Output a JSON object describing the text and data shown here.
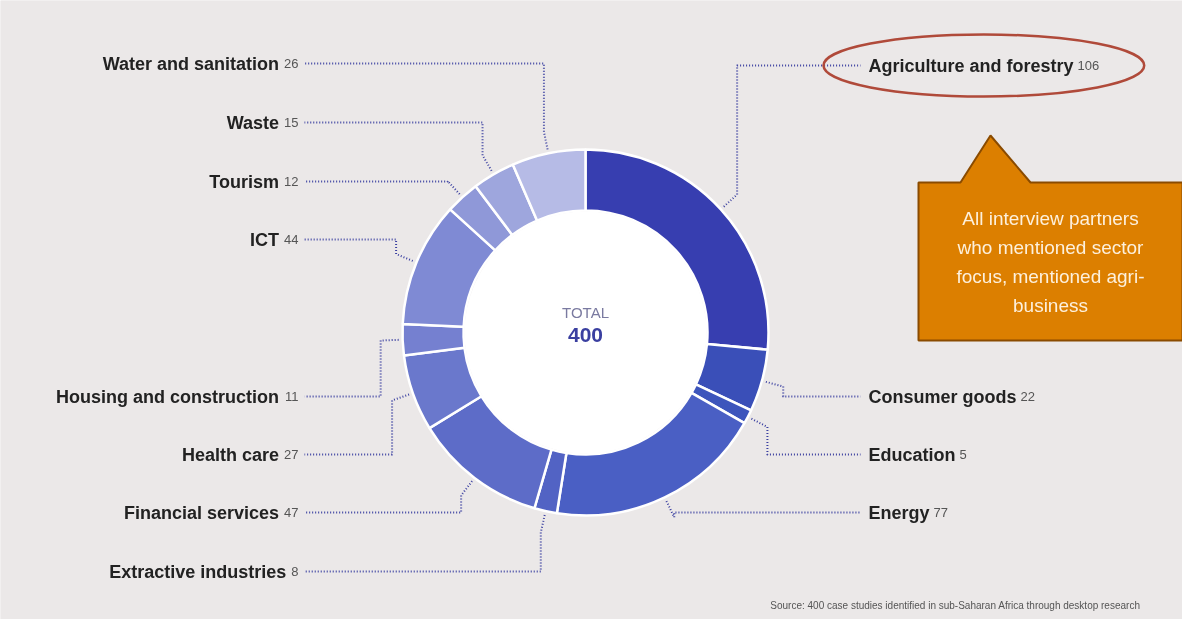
{
  "chart_data": {
    "type": "donut",
    "categories": [
      "Agriculture and forestry",
      "Consumer goods",
      "Education",
      "Energy",
      "Extractive industries",
      "Financial services",
      "Health care",
      "Housing and construction",
      "ICT",
      "Tourism",
      "Waste",
      "Water and sanitation"
    ],
    "values": [
      106,
      22,
      5,
      77,
      8,
      47,
      27,
      11,
      44,
      12,
      15,
      26
    ],
    "colors": [
      "#373eb0",
      "#3a4fb8",
      "#3d55bc",
      "#4a5fc4",
      "#5263c4",
      "#5d6cc8",
      "#6a78cc",
      "#7580d0",
      "#7f8ad4",
      "#8f98d8",
      "#9ea6dd",
      "#b6bbe6"
    ],
    "data_labels": true,
    "annotations": [
      "TOTAL",
      "400",
      {
        "text": "All interview partners who mentioned sector focus, mentioned agri-business",
        "x": "Agriculture and forestry"
      },
      "Source: 400 case studies identified in sub-Saharan Africa through desktop research"
    ]
  }
}
